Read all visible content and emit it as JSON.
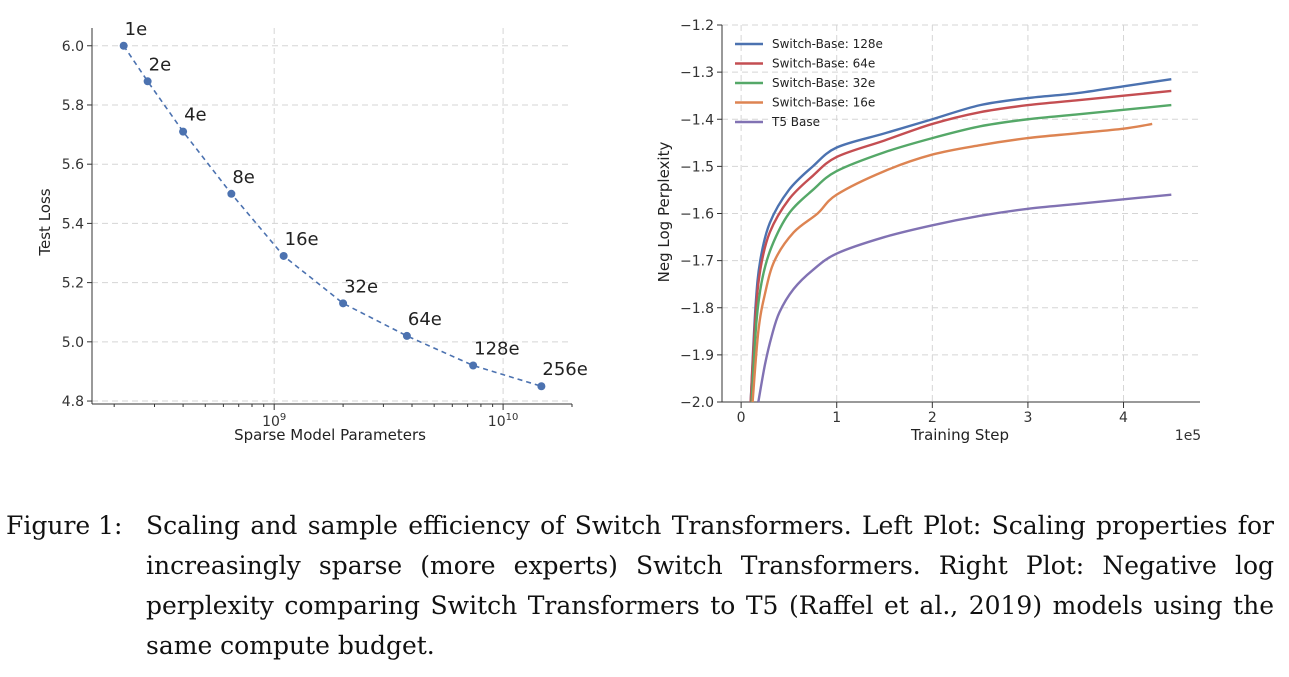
{
  "caption": {
    "label": "Figure 1:",
    "text": "Scaling and sample efficiency of Switch Transformers. Left Plot: Scaling properties for increasingly sparse (more experts) Switch Transformers. Right Plot: Negative log perplexity comparing Switch Transformers to T5 (Raffel et al., 2019) models using the same compute budget."
  },
  "chart_data": [
    {
      "type": "line",
      "xlabel": "Sparse Model Parameters",
      "ylabel": "Test Loss",
      "xscale": "log",
      "ylim": [
        4.8,
        6.0
      ],
      "yticks": [
        4.8,
        5.0,
        5.2,
        5.4,
        5.6,
        5.8,
        6.0
      ],
      "xtick_labels": [
        {
          "base": "10",
          "exp": "9",
          "value": 1000000000
        },
        {
          "base": "10",
          "exp": "10",
          "value": 10000000000
        }
      ],
      "color": "#4c72b0",
      "line_style": "dashed",
      "grid": true,
      "points": [
        {
          "label": "1e",
          "x": 220000000,
          "y": 6.0
        },
        {
          "label": "2e",
          "x": 280000000,
          "y": 5.88
        },
        {
          "label": "4e",
          "x": 400000000,
          "y": 5.71
        },
        {
          "label": "8e",
          "x": 650000000,
          "y": 5.5
        },
        {
          "label": "16e",
          "x": 1100000000,
          "y": 5.29
        },
        {
          "label": "32e",
          "x": 2000000000,
          "y": 5.13
        },
        {
          "label": "64e",
          "x": 3800000000,
          "y": 5.02
        },
        {
          "label": "128e",
          "x": 7400000000,
          "y": 4.92
        },
        {
          "label": "256e",
          "x": 14700000000,
          "y": 4.85
        }
      ]
    },
    {
      "type": "line",
      "xlabel": "Training Step",
      "ylabel": "Neg Log Perplexity",
      "x_multiplier_label": "1e5",
      "xlim": [
        -0.2,
        4.8
      ],
      "ylim": [
        -2.0,
        -1.2
      ],
      "xticks": [
        0,
        1,
        2,
        3,
        4
      ],
      "yticks": [
        -2.0,
        -1.9,
        -1.8,
        -1.7,
        -1.6,
        -1.5,
        -1.4,
        -1.3,
        -1.2
      ],
      "ytick_labels": [
        "−2.0",
        "−1.9",
        "−1.8",
        "−1.7",
        "−1.6",
        "−1.5",
        "−1.4",
        "−1.3",
        "−1.2"
      ],
      "grid": true,
      "legend_position": "top-left",
      "series": [
        {
          "name": "Switch-Base: 128e",
          "color": "#4c72b0",
          "x": [
            0.1,
            0.15,
            0.2,
            0.3,
            0.5,
            0.75,
            1.0,
            1.5,
            2.0,
            2.5,
            3.0,
            3.5,
            4.0,
            4.5
          ],
          "y": [
            -2.0,
            -1.8,
            -1.7,
            -1.62,
            -1.55,
            -1.5,
            -1.46,
            -1.43,
            -1.4,
            -1.37,
            -1.355,
            -1.345,
            -1.33,
            -1.315
          ]
        },
        {
          "name": "Switch-Base: 64e",
          "color": "#c44e52",
          "x": [
            0.1,
            0.15,
            0.2,
            0.3,
            0.5,
            0.75,
            1.0,
            1.5,
            2.0,
            2.5,
            3.0,
            3.5,
            4.0,
            4.5
          ],
          "y": [
            -2.0,
            -1.82,
            -1.72,
            -1.64,
            -1.57,
            -1.52,
            -1.48,
            -1.445,
            -1.41,
            -1.385,
            -1.37,
            -1.36,
            -1.35,
            -1.34
          ]
        },
        {
          "name": "Switch-Base: 32e",
          "color": "#55a868",
          "x": [
            0.11,
            0.16,
            0.22,
            0.32,
            0.5,
            0.75,
            1.0,
            1.5,
            2.0,
            2.5,
            3.0,
            3.5,
            4.0,
            4.5
          ],
          "y": [
            -2.0,
            -1.83,
            -1.74,
            -1.67,
            -1.6,
            -1.55,
            -1.51,
            -1.47,
            -1.44,
            -1.415,
            -1.4,
            -1.39,
            -1.38,
            -1.37
          ]
        },
        {
          "name": "Switch-Base: 16e",
          "color": "#dd8452",
          "x": [
            0.12,
            0.18,
            0.25,
            0.35,
            0.55,
            0.8,
            1.0,
            1.5,
            2.0,
            2.5,
            3.0,
            3.5,
            4.0,
            4.3
          ],
          "y": [
            -2.0,
            -1.85,
            -1.77,
            -1.7,
            -1.64,
            -1.6,
            -1.56,
            -1.51,
            -1.475,
            -1.455,
            -1.44,
            -1.43,
            -1.42,
            -1.41
          ]
        },
        {
          "name": "T5 Base",
          "color": "#8172b3",
          "x": [
            0.18,
            0.25,
            0.32,
            0.4,
            0.55,
            0.75,
            1.0,
            1.5,
            2.0,
            2.5,
            3.0,
            3.5,
            4.0,
            4.5
          ],
          "y": [
            -2.0,
            -1.92,
            -1.86,
            -1.81,
            -1.76,
            -1.72,
            -1.685,
            -1.65,
            -1.625,
            -1.605,
            -1.59,
            -1.58,
            -1.57,
            -1.56
          ]
        }
      ]
    }
  ]
}
